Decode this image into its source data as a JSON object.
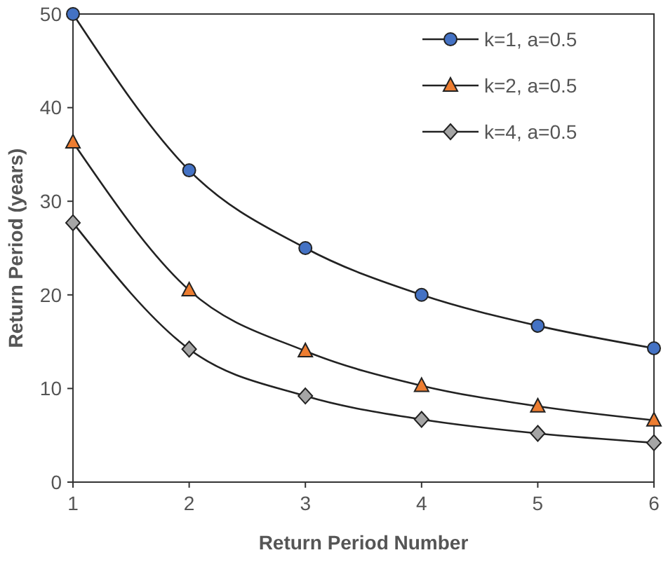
{
  "chart_data": {
    "type": "line",
    "xlabel": "Return Period Number",
    "ylabel": "Return Period (years)",
    "x": [
      1,
      2,
      3,
      4,
      5,
      6
    ],
    "xlim": [
      1,
      6
    ],
    "xticks": [
      1,
      2,
      3,
      4,
      5,
      6
    ],
    "ylim": [
      0,
      50
    ],
    "yticks": [
      0,
      10,
      20,
      30,
      40,
      50
    ],
    "legend": "top right",
    "grid": false,
    "series": [
      {
        "name": "k=1, a=0.5",
        "color": "#4472c4",
        "marker": "circle",
        "values": [
          50,
          33.3,
          25,
          20,
          16.7,
          14.3
        ]
      },
      {
        "name": "k=2, a=0.5",
        "color": "#ed7d31",
        "marker": "triangle",
        "values": [
          36.3,
          20.5,
          14,
          10.3,
          8.1,
          6.6
        ]
      },
      {
        "name": "k=4, a=0.5",
        "color": "#a5a5a5",
        "marker": "diamond",
        "values": [
          27.7,
          14.2,
          9.2,
          6.7,
          5.2,
          4.2
        ]
      }
    ]
  }
}
